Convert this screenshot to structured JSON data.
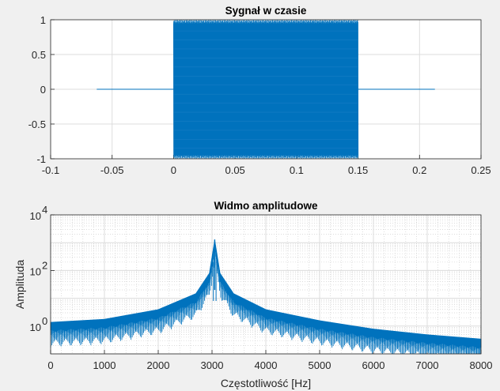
{
  "figure": {
    "background": "#f0f0f0",
    "axes_background": "#ffffff",
    "line_color": "#0072bd",
    "grid_color": "#dcdcdc"
  },
  "chart_data": [
    {
      "type": "line",
      "title": "Sygnał w czasie",
      "xlabel": "",
      "ylabel": "",
      "xlim": [
        -0.1,
        0.25
      ],
      "ylim": [
        -1,
        1
      ],
      "xticks": [
        "-0.1",
        "-0.05",
        "0",
        "0.05",
        "0.1",
        "0.15",
        "0.2",
        "0.25"
      ],
      "yticks": [
        "-1",
        "-0.5",
        "0",
        "0.5",
        "1"
      ],
      "grid": true,
      "series": [
        {
          "segments": [
            {
              "x": [
                -0.0625,
                0.0
              ],
              "value": 0
            },
            {
              "x": [
                0.0,
                0.15
              ],
              "amplitude": 1,
              "description_value": "oscillating sinusoid"
            },
            {
              "x": [
                0.15,
                0.2125
              ],
              "value": 0
            }
          ]
        }
      ]
    },
    {
      "type": "line",
      "title": "Widmo amplitudowe",
      "xlabel": "Częstotliwość [Hz]",
      "ylabel": "Amplituda",
      "xlim": [
        0,
        8000
      ],
      "ylim": [
        0.1,
        10000
      ],
      "yscale": "log",
      "xticks": [
        "0",
        "1000",
        "2000",
        "3000",
        "4000",
        "5000",
        "6000",
        "7000",
        "8000"
      ],
      "yticks": [
        {
          "base": "10",
          "exp": "0"
        },
        {
          "base": "10",
          "exp": "2"
        },
        {
          "base": "10",
          "exp": "4"
        }
      ],
      "grid": true,
      "minor_grid": true,
      "series": [
        {
          "peak_frequency": 3050,
          "peak_amplitude": 1300,
          "envelope": [
            {
              "x": 0,
              "y": 1.4
            },
            {
              "x": 1000,
              "y": 1.8
            },
            {
              "x": 2000,
              "y": 4
            },
            {
              "x": 2700,
              "y": 15
            },
            {
              "x": 2950,
              "y": 80
            },
            {
              "x": 3050,
              "y": 1300
            },
            {
              "x": 3150,
              "y": 80
            },
            {
              "x": 3400,
              "y": 15
            },
            {
              "x": 4000,
              "y": 4
            },
            {
              "x": 5000,
              "y": 1.6
            },
            {
              "x": 6000,
              "y": 0.8
            },
            {
              "x": 7000,
              "y": 0.5
            },
            {
              "x": 8000,
              "y": 0.35
            }
          ]
        }
      ]
    }
  ]
}
